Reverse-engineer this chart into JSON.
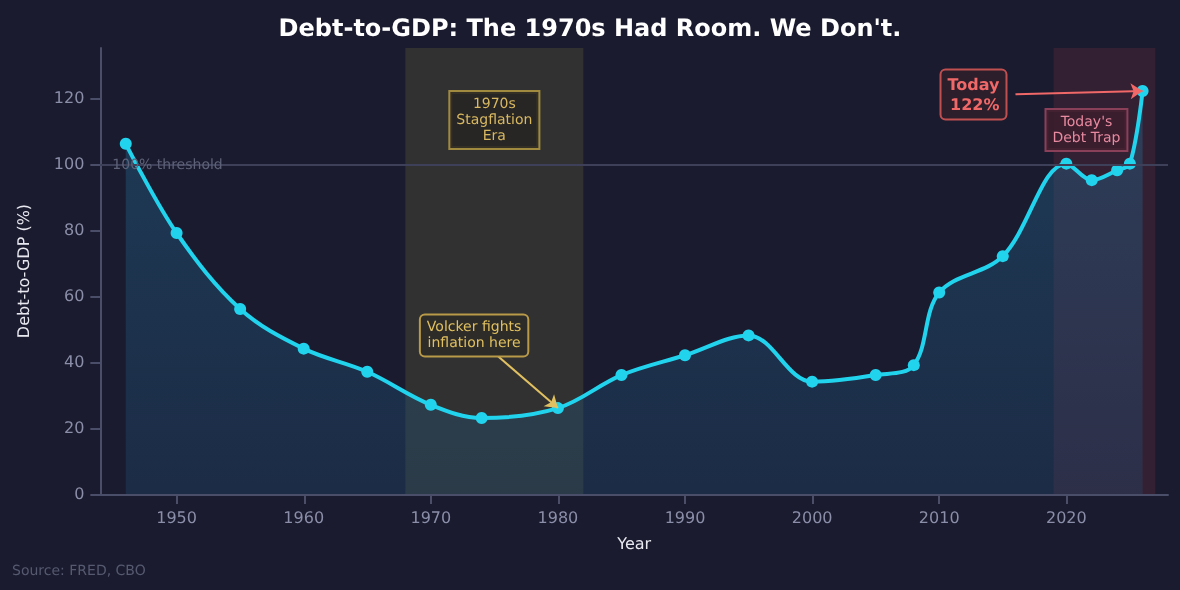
{
  "chart_data": {
    "type": "area",
    "title": "Debt-to-GDP: The 1970s Had Room. We Don't.",
    "xlabel": "Year",
    "ylabel": "Debt-to-GDP (%)",
    "x": [
      1946,
      1950,
      1955,
      1960,
      1965,
      1970,
      1974,
      1980,
      1985,
      1990,
      1995,
      2000,
      2005,
      2008,
      2010,
      2015,
      2020,
      2022,
      2024,
      2025,
      2026
    ],
    "series": [
      {
        "color": "#22d3ee",
        "values": [
          106,
          79,
          56,
          44,
          37,
          27,
          23,
          26,
          36,
          42,
          48,
          34,
          36,
          39,
          61,
          72,
          100,
          95,
          98,
          100,
          122
        ]
      }
    ],
    "xlim": [
      1944,
      2028
    ],
    "xticks": [
      1950,
      1960,
      1970,
      1980,
      1990,
      2000,
      2010,
      2020
    ],
    "ylim": [
      0,
      135
    ],
    "yticks": [
      0,
      20,
      40,
      60,
      80,
      100,
      120
    ],
    "grid": false,
    "marker": "circle",
    "line_style": "solid",
    "ref_lines": [
      {
        "axis": "y",
        "value": 100,
        "label": "100% threshold",
        "color": "#3d4058"
      }
    ],
    "bands": [
      {
        "axis": "x",
        "from": 1968,
        "to": 1982,
        "label": "1970s\nStagflation\nEra",
        "color": "#3a3a34"
      },
      {
        "axis": "x",
        "from": 2019,
        "to": 2027,
        "label": "Today's\nDebt Trap",
        "color": "#3e2335"
      }
    ],
    "annotations": [
      {
        "text": "Volcker fights\ninflation here",
        "x": 1980,
        "y": 26
      },
      {
        "text": "Today\n122%",
        "x": 2026,
        "y": 122
      },
      "Source: FRED, CBO"
    ]
  }
}
